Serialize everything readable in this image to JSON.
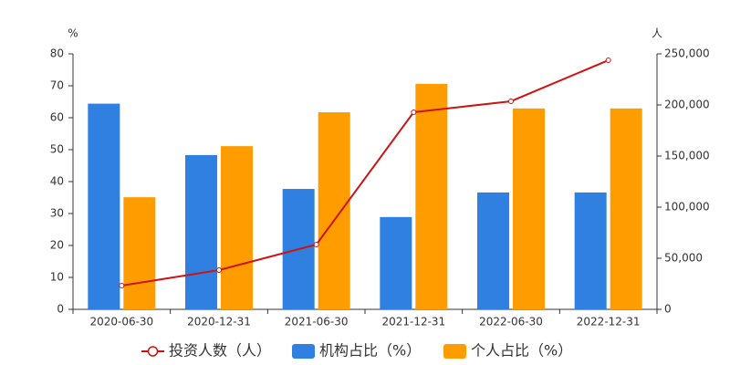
{
  "chart_data": {
    "type": "bar",
    "y_unit": "%",
    "y2_unit": "人",
    "categories": [
      "2020-06-30",
      "2020-12-31",
      "2021-06-30",
      "2021-12-31",
      "2022-06-30",
      "2022-12-31"
    ],
    "series": [
      {
        "name": "投资人数（人）",
        "type": "line",
        "axis": "y2",
        "color": "#cc1414",
        "values": [
          23200,
          38400,
          63400,
          192900,
          203600,
          243700
        ]
      },
      {
        "name": "机构占比（%）",
        "type": "bar",
        "color": "#2f80e0",
        "values": [
          64.4,
          48.3,
          37.7,
          28.9,
          36.6,
          36.6
        ]
      },
      {
        "name": "个人占比（%）",
        "type": "bar",
        "color": "#ff9c00",
        "values": [
          35.1,
          51.1,
          61.7,
          70.6,
          62.9,
          62.9
        ]
      }
    ],
    "ylim": [
      0,
      80
    ],
    "yticks": [
      0,
      10,
      20,
      30,
      40,
      50,
      60,
      70,
      80
    ],
    "y2lim": [
      0,
      250000
    ],
    "y2ticks": [
      {
        "value": 0,
        "label": "0"
      },
      {
        "value": 50000,
        "label": "50,000"
      },
      {
        "value": 100000,
        "label": "100,000"
      },
      {
        "value": 150000,
        "label": "150,000"
      },
      {
        "value": 200000,
        "label": "200,000"
      },
      {
        "value": 250000,
        "label": "250,000"
      }
    ]
  }
}
